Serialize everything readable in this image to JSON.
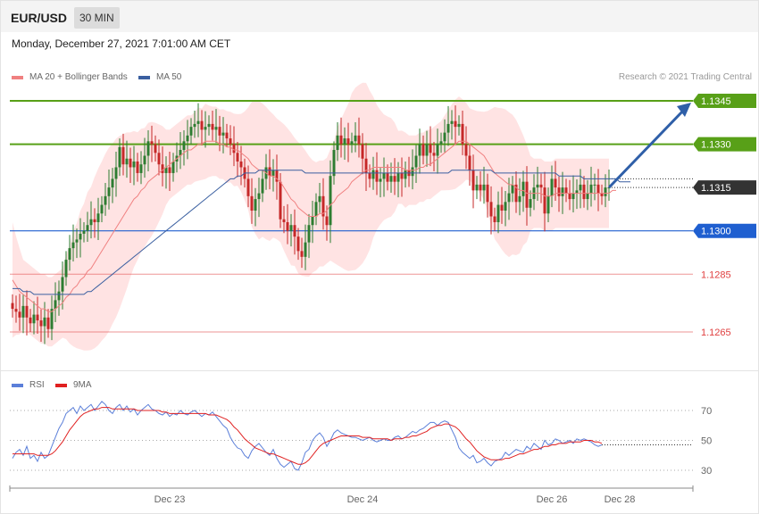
{
  "header": {
    "pair": "EUR/USD",
    "timeframe": "30 MIN"
  },
  "datetime": "Monday, December 27, 2021 7:01:00 AM CET",
  "legend_main": [
    {
      "label": "MA 20 + Bollinger Bands",
      "color": "#f08080"
    },
    {
      "label": "MA 50",
      "color": "#3a5fa0"
    }
  ],
  "credit": "Research © 2021 Trading Central",
  "legend_rsi": [
    {
      "label": "RSI",
      "color": "#5b7fd9"
    },
    {
      "label": "9MA",
      "color": "#e02020"
    }
  ],
  "colors": {
    "bull": "#2e7d32",
    "bear": "#c62828",
    "band": "#ffdada",
    "resistance": "#58a018",
    "support": "#1f5fd0",
    "support_weak": "#e04040",
    "arrow": "#2f5fa8"
  },
  "chart_data": {
    "type": "candlestick",
    "ylim": [
      1.1262,
      1.1352
    ],
    "levels": [
      {
        "label": "1.1345",
        "value": 1.1345,
        "kind": "resistance"
      },
      {
        "label": "1.1330",
        "value": 1.133,
        "kind": "resistance"
      },
      {
        "label": "1.1315",
        "value": 1.1315,
        "kind": "current"
      },
      {
        "label": "1.1300",
        "value": 1.13,
        "kind": "pivot"
      },
      {
        "label": "1.1285",
        "value": 1.1285,
        "kind": "support"
      },
      {
        "label": "1.1265",
        "value": 1.1265,
        "kind": "support"
      }
    ],
    "x_ticks": [
      {
        "label": "Dec 23",
        "index": 44
      },
      {
        "label": "Dec 24",
        "index": 98
      },
      {
        "label": "Dec 26",
        "index": 151
      },
      {
        "label": "Dec 28",
        "index": 170
      }
    ],
    "forecast": {
      "from_index": 172,
      "from_value": 1.1315,
      "to_index": 188,
      "to_value": 1.1345
    },
    "close": [
      1.1273,
      1.1272,
      1.127,
      1.1274,
      1.127,
      1.1268,
      1.1271,
      1.1269,
      1.1267,
      1.127,
      1.1266,
      1.1273,
      1.1276,
      1.1279,
      1.1284,
      1.129,
      1.1294,
      1.1296,
      1.1297,
      1.1299,
      1.13,
      1.1302,
      1.1304,
      1.1303,
      1.1306,
      1.1309,
      1.1312,
      1.1315,
      1.1318,
      1.1322,
      1.1329,
      1.1323,
      1.1325,
      1.1322,
      1.1324,
      1.132,
      1.1323,
      1.1326,
      1.1331,
      1.133,
      1.1327,
      1.1323,
      1.132,
      1.1322,
      1.132,
      1.1324,
      1.1326,
      1.1328,
      1.1331,
      1.1333,
      1.1336,
      1.1337,
      1.1338,
      1.1335,
      1.1336,
      1.1337,
      1.1335,
      1.1336,
      1.1333,
      1.1334,
      1.1332,
      1.133,
      1.1327,
      1.1324,
      1.1322,
      1.1318,
      1.1312,
      1.1307,
      1.1311,
      1.1313,
      1.1318,
      1.1322,
      1.1319,
      1.1321,
      1.1317,
      1.1304,
      1.1303,
      1.13,
      1.1302,
      1.1298,
      1.1293,
      1.1291,
      1.1296,
      1.1302,
      1.1305,
      1.131,
      1.1312,
      1.1305,
      1.1302,
      1.1319,
      1.1328,
      1.1333,
      1.133,
      1.1332,
      1.133,
      1.1331,
      1.1333,
      1.133,
      1.1325,
      1.132,
      1.1318,
      1.1321,
      1.1317,
      1.1318,
      1.132,
      1.1317,
      1.1319,
      1.1317,
      1.132,
      1.1318,
      1.1321,
      1.1319,
      1.1322,
      1.1326,
      1.133,
      1.1326,
      1.133,
      1.1327,
      1.1326,
      1.133,
      1.1331,
      1.1334,
      1.1337,
      1.1338,
      1.1336,
      1.1337,
      1.133,
      1.1326,
      1.1321,
      1.1314,
      1.1316,
      1.1314,
      1.1316,
      1.131,
      1.1305,
      1.1303,
      1.1309,
      1.1307,
      1.131,
      1.1313,
      1.1316,
      1.131,
      1.1312,
      1.1317,
      1.1308,
      1.1311,
      1.1315,
      1.1316,
      1.1315,
      1.1306,
      1.1312,
      1.1318,
      1.1315,
      1.1312,
      1.1315,
      1.1313,
      1.1311,
      1.1313,
      1.1314,
      1.1316,
      1.1311,
      1.1313,
      1.1316,
      1.1316,
      1.1313,
      1.1312,
      1.1315,
      1.1315
    ],
    "ma20": [
      1.1283,
      1.1281,
      1.1279,
      1.1278,
      1.1277,
      1.1276,
      1.1275,
      1.1274,
      1.1273,
      1.1273,
      1.1272,
      1.1272,
      1.1273,
      1.1274,
      1.1275,
      1.1277,
      1.1278,
      1.128,
      1.1281,
      1.1283,
      1.1284,
      1.1286,
      1.1287,
      1.1289,
      1.1291,
      1.1293,
      1.1295,
      1.1297,
      1.1299,
      1.1301,
      1.1303,
      1.1305,
      1.1307,
      1.1309,
      1.1311,
      1.1312,
      1.1314,
      1.1315,
      1.1317,
      1.1318,
      1.1319,
      1.132,
      1.1321,
      1.1322,
      1.1323,
      1.1324,
      1.1325,
      1.1326,
      1.1327,
      1.1328,
      1.1328,
      1.1329,
      1.133,
      1.133,
      1.1331,
      1.1331,
      1.1331,
      1.1331,
      1.133,
      1.133,
      1.1329,
      1.1329,
      1.1328,
      1.1328,
      1.1327,
      1.1326,
      1.1325,
      1.1323,
      1.1322,
      1.1321,
      1.1321,
      1.132,
      1.1319,
      1.1319,
      1.1318,
      1.1317,
      1.1315,
      1.1313,
      1.1311,
      1.131,
      1.1308,
      1.1307,
      1.1306,
      1.1305,
      1.1305,
      1.1305,
      1.1306,
      1.1306,
      1.1307,
      1.1309,
      1.131,
      1.1312,
      1.1313,
      1.1314,
      1.1315,
      1.1317,
      1.1318,
      1.1319,
      1.132,
      1.1321,
      1.1321,
      1.1322,
      1.1322,
      1.1322,
      1.1322,
      1.1322,
      1.1322,
      1.1322,
      1.1322,
      1.1322,
      1.1321,
      1.1321,
      1.1321,
      1.1321,
      1.1322,
      1.1322,
      1.1323,
      1.1323,
      1.1324,
      1.1325,
      1.1326,
      1.1327,
      1.1328,
      1.1329,
      1.133,
      1.1331,
      1.1331,
      1.1331,
      1.133,
      1.1329,
      1.1328,
      1.1327,
      1.1326,
      1.1324,
      1.1322,
      1.132,
      1.1319,
      1.1318,
      1.1317,
      1.1316,
      1.1316,
      1.1315,
      1.1314,
      1.1314,
      1.1313,
      1.1313,
      1.1313,
      1.1313,
      1.1313,
      1.1312,
      1.1312,
      1.1312,
      1.1313,
      1.1313,
      1.1313,
      1.1313,
      1.1313,
      1.1313,
      1.1313,
      1.1313,
      1.1313,
      1.1313,
      1.1313,
      1.1313,
      1.1313,
      1.1313,
      1.1313,
      1.1313,
      1.1314,
      1.1314
    ],
    "ma50": [
      1.128,
      1.128,
      1.128,
      1.1279,
      1.1279,
      1.1279,
      1.1278,
      1.1278,
      1.1278,
      1.1278,
      1.1278,
      1.1278,
      1.1278,
      1.1278,
      1.1278,
      1.1278,
      1.1278,
      1.1278,
      1.1278,
      1.1278,
      1.1278,
      1.1279,
      1.1279,
      1.128,
      1.1281,
      1.1282,
      1.1283,
      1.1284,
      1.1285,
      1.1286,
      1.1287,
      1.1288,
      1.1289,
      1.129,
      1.1291,
      1.1292,
      1.1293,
      1.1294,
      1.1295,
      1.1296,
      1.1297,
      1.1298,
      1.1299,
      1.13,
      1.1301,
      1.1302,
      1.1303,
      1.1304,
      1.1305,
      1.1306,
      1.1307,
      1.1308,
      1.1309,
      1.131,
      1.1311,
      1.1312,
      1.1313,
      1.1314,
      1.1315,
      1.1316,
      1.1317,
      1.1318,
      1.1318,
      1.1319,
      1.1319,
      1.132,
      1.132,
      1.132,
      1.132,
      1.1321,
      1.1321,
      1.1321,
      1.1321,
      1.1321,
      1.1321,
      1.1321,
      1.1321,
      1.1321,
      1.1321,
      1.1321,
      1.1321,
      1.1321,
      1.132,
      1.132,
      1.132,
      1.132,
      1.132,
      1.132,
      1.132,
      1.132,
      1.132,
      1.132,
      1.132,
      1.132,
      1.132,
      1.132,
      1.132,
      1.132,
      1.132,
      1.132,
      1.132,
      1.132,
      1.132,
      1.132,
      1.132,
      1.132,
      1.132,
      1.132,
      1.132,
      1.132,
      1.132,
      1.132,
      1.132,
      1.132,
      1.132,
      1.132,
      1.132,
      1.132,
      1.132,
      1.132,
      1.132,
      1.132,
      1.132,
      1.1321,
      1.1321,
      1.1321,
      1.1321,
      1.1321,
      1.1321,
      1.1321,
      1.1321,
      1.1321,
      1.1321,
      1.1321,
      1.1321,
      1.132,
      1.132,
      1.132,
      1.132,
      1.132,
      1.132,
      1.132,
      1.132,
      1.132,
      1.132,
      1.132,
      1.132,
      1.132,
      1.132,
      1.132,
      1.132,
      1.132,
      1.132,
      1.1319,
      1.1319,
      1.1319,
      1.1319,
      1.1319,
      1.1319,
      1.1319,
      1.1318,
      1.1318,
      1.1318,
      1.1318,
      1.1318,
      1.1318,
      1.1318,
      1.1318,
      1.1318,
      1.1318,
      1.1317,
      1.1317,
      1.1317,
      1.1317
    ],
    "rsi_panel": {
      "levels": [
        70,
        50,
        30
      ],
      "ylim": [
        22,
        78
      ],
      "rsi": [
        38,
        42,
        44,
        40,
        46,
        38,
        40,
        36,
        42,
        38,
        40,
        46,
        52,
        58,
        62,
        68,
        70,
        72,
        68,
        73,
        70,
        72,
        74,
        70,
        73,
        76,
        74,
        70,
        68,
        72,
        74,
        70,
        73,
        69,
        71,
        67,
        70,
        72,
        74,
        71,
        70,
        68,
        67,
        69,
        66,
        68,
        67,
        70,
        68,
        67,
        69,
        70,
        68,
        66,
        68,
        67,
        69,
        66,
        63,
        60,
        58,
        52,
        48,
        45,
        44,
        40,
        38,
        43,
        46,
        48,
        45,
        42,
        40,
        44,
        38,
        34,
        32,
        34,
        36,
        31,
        30,
        35,
        42,
        44,
        50,
        53,
        55,
        52,
        46,
        50,
        55,
        57,
        55,
        54,
        53,
        52,
        52,
        51,
        50,
        51,
        52,
        50,
        49,
        50,
        51,
        50,
        50,
        52,
        53,
        51,
        52,
        54,
        56,
        55,
        57,
        58,
        60,
        62,
        62,
        60,
        62,
        63,
        62,
        57,
        52,
        45,
        42,
        40,
        38,
        40,
        35,
        36,
        38,
        35,
        33,
        36,
        37,
        38,
        42,
        40,
        42,
        44,
        43,
        42,
        46,
        44,
        48,
        46,
        44,
        50,
        47,
        48,
        51,
        50,
        48,
        49,
        50,
        48,
        51,
        50,
        51,
        50,
        49,
        47,
        46,
        47
      ],
      "ma9": [
        41,
        41,
        41,
        41,
        41,
        41,
        41,
        40,
        40,
        40,
        40,
        41,
        43,
        46,
        49,
        53,
        57,
        60,
        63,
        66,
        68,
        69,
        70,
        71,
        71,
        72,
        72,
        72,
        71,
        71,
        71,
        71,
        71,
        71,
        71,
        70,
        70,
        70,
        70,
        70,
        70,
        70,
        69,
        69,
        68,
        68,
        68,
        68,
        68,
        68,
        68,
        68,
        68,
        68,
        68,
        67,
        67,
        67,
        66,
        65,
        64,
        62,
        59,
        57,
        54,
        51,
        49,
        47,
        45,
        44,
        43,
        42,
        41,
        41,
        40,
        39,
        38,
        37,
        36,
        35,
        34,
        34,
        35,
        37,
        40,
        43,
        46,
        48,
        49,
        50,
        51,
        52,
        53,
        53,
        53,
        53,
        53,
        53,
        52,
        52,
        52,
        51,
        51,
        51,
        51,
        51,
        50,
        51,
        51,
        51,
        52,
        52,
        53,
        53,
        54,
        55,
        56,
        58,
        59,
        60,
        60,
        61,
        61,
        60,
        59,
        57,
        54,
        51,
        49,
        46,
        43,
        41,
        39,
        38,
        37,
        37,
        37,
        37,
        38,
        38,
        39,
        40,
        41,
        41,
        42,
        43,
        44,
        44,
        45,
        46,
        46,
        47,
        47,
        48,
        48,
        48,
        49,
        49,
        49,
        49,
        50,
        50,
        50,
        49,
        49,
        48
      ]
    }
  }
}
